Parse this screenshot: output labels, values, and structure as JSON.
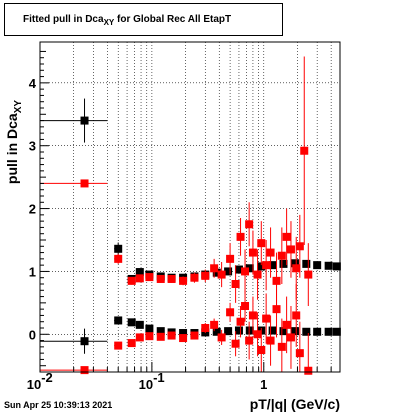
{
  "chart_data": {
    "type": "scatter",
    "title": "Fitted pull in Dca",
    "title_subscript": "XY",
    "title_suffix": " for Global Rec All EtapT",
    "xlabel": "pT/|q| (GeV/c)",
    "ylabel": "pull in Dca",
    "ylabel_subscript": "XY",
    "x_scale": "log",
    "xlim": [
      0.01,
      4.8
    ],
    "ylim": [
      -0.6,
      4.65
    ],
    "x_tick_labels": [
      "10",
      "-2",
      "10",
      "-1",
      "1"
    ],
    "x_major_ticks": [
      0.01,
      0.1,
      1
    ],
    "y_ticks": [
      0,
      1,
      2,
      3,
      4
    ],
    "y_tick_labels": [
      "0",
      "1",
      "2",
      "3",
      "4"
    ],
    "grid": true,
    "series": [
      {
        "marker": "square",
        "color": "#000000",
        "points": [
          {
            "x": 0.025,
            "y": 3.4,
            "xerr": 0.015,
            "yerr": 0.35
          },
          {
            "x": 0.05,
            "y": 1.36,
            "xerr": 0.004,
            "yerr": 0.1
          },
          {
            "x": 0.066,
            "y": 0.88,
            "xerr": 0.004,
            "yerr": 0.06
          },
          {
            "x": 0.078,
            "y": 0.99,
            "xerr": 0.004,
            "yerr": 0.05
          },
          {
            "x": 0.095,
            "y": 0.95,
            "xerr": 0.004,
            "yerr": 0.04
          },
          {
            "x": 0.12,
            "y": 0.92,
            "xerr": 0.005,
            "yerr": 0.04
          },
          {
            "x": 0.15,
            "y": 0.9,
            "xerr": 0.005,
            "yerr": 0.04
          },
          {
            "x": 0.19,
            "y": 0.9,
            "xerr": 0.005,
            "yerr": 0.04
          },
          {
            "x": 0.24,
            "y": 0.92,
            "xerr": 0.006,
            "yerr": 0.04
          },
          {
            "x": 0.3,
            "y": 0.95,
            "xerr": 0.007,
            "yerr": 0.04
          },
          {
            "x": 0.38,
            "y": 0.98,
            "xerr": 0.008,
            "yerr": 0.04
          },
          {
            "x": 0.48,
            "y": 1.0,
            "xerr": 0.01,
            "yerr": 0.04
          },
          {
            "x": 0.6,
            "y": 1.03,
            "xerr": 0.012,
            "yerr": 0.05
          },
          {
            "x": 0.75,
            "y": 1.05,
            "xerr": 0.015,
            "yerr": 0.05
          },
          {
            "x": 0.95,
            "y": 1.08,
            "xerr": 0.02,
            "yerr": 0.05
          },
          {
            "x": 1.2,
            "y": 1.1,
            "xerr": 0.025,
            "yerr": 0.05
          },
          {
            "x": 1.5,
            "y": 1.12,
            "xerr": 0.03,
            "yerr": 0.05
          },
          {
            "x": 1.9,
            "y": 1.13,
            "xerr": 0.04,
            "yerr": 0.05
          },
          {
            "x": 2.4,
            "y": 1.12,
            "xerr": 0.05,
            "yerr": 0.05
          },
          {
            "x": 3.0,
            "y": 1.1,
            "xerr": 0.06,
            "yerr": 0.05
          },
          {
            "x": 3.8,
            "y": 1.09,
            "xerr": 0.08,
            "yerr": 0.05
          },
          {
            "x": 4.5,
            "y": 1.08,
            "xerr": 0.09,
            "yerr": 0.05
          },
          {
            "x": 0.025,
            "y": -0.11,
            "xerr": 0.015,
            "yerr": 0.2
          },
          {
            "x": 0.05,
            "y": 0.22,
            "xerr": 0.004,
            "yerr": 0.04
          },
          {
            "x": 0.066,
            "y": 0.19,
            "xerr": 0.004,
            "yerr": 0.03
          },
          {
            "x": 0.078,
            "y": 0.15,
            "xerr": 0.004,
            "yerr": 0.03
          },
          {
            "x": 0.095,
            "y": 0.09,
            "xerr": 0.004,
            "yerr": 0.03
          },
          {
            "x": 0.12,
            "y": 0.05,
            "xerr": 0.005,
            "yerr": 0.03
          },
          {
            "x": 0.15,
            "y": 0.03,
            "xerr": 0.005,
            "yerr": 0.03
          },
          {
            "x": 0.19,
            "y": 0.02,
            "xerr": 0.005,
            "yerr": 0.03
          },
          {
            "x": 0.24,
            "y": 0.02,
            "xerr": 0.006,
            "yerr": 0.03
          },
          {
            "x": 0.3,
            "y": 0.03,
            "xerr": 0.007,
            "yerr": 0.03
          },
          {
            "x": 0.38,
            "y": 0.04,
            "xerr": 0.008,
            "yerr": 0.03
          },
          {
            "x": 0.48,
            "y": 0.05,
            "xerr": 0.01,
            "yerr": 0.03
          },
          {
            "x": 0.6,
            "y": 0.06,
            "xerr": 0.012,
            "yerr": 0.03
          },
          {
            "x": 0.75,
            "y": 0.06,
            "xerr": 0.015,
            "yerr": 0.03
          },
          {
            "x": 0.95,
            "y": 0.06,
            "xerr": 0.02,
            "yerr": 0.03
          },
          {
            "x": 1.2,
            "y": 0.06,
            "xerr": 0.025,
            "yerr": 0.03
          },
          {
            "x": 1.5,
            "y": 0.05,
            "xerr": 0.03,
            "yerr": 0.03
          },
          {
            "x": 1.9,
            "y": 0.05,
            "xerr": 0.04,
            "yerr": 0.03
          },
          {
            "x": 2.4,
            "y": 0.04,
            "xerr": 0.05,
            "yerr": 0.03
          },
          {
            "x": 3.0,
            "y": 0.04,
            "xerr": 0.06,
            "yerr": 0.03
          },
          {
            "x": 3.8,
            "y": 0.04,
            "xerr": 0.08,
            "yerr": 0.03
          },
          {
            "x": 4.5,
            "y": 0.04,
            "xerr": 0.09,
            "yerr": 0.03
          }
        ]
      },
      {
        "marker": "square",
        "color": "#ff0000",
        "points": [
          {
            "x": 0.025,
            "y": 2.4,
            "xerr": 0.015,
            "yerr": 0.0
          },
          {
            "x": 0.05,
            "y": 1.2,
            "xerr": 0.004,
            "yerr": 0.08
          },
          {
            "x": 0.066,
            "y": 0.85,
            "xerr": 0.004,
            "yerr": 0.06
          },
          {
            "x": 0.078,
            "y": 0.89,
            "xerr": 0.004,
            "yerr": 0.06
          },
          {
            "x": 0.095,
            "y": 0.91,
            "xerr": 0.004,
            "yerr": 0.06
          },
          {
            "x": 0.12,
            "y": 0.88,
            "xerr": 0.005,
            "yerr": 0.06
          },
          {
            "x": 0.15,
            "y": 0.88,
            "xerr": 0.005,
            "yerr": 0.06
          },
          {
            "x": 0.19,
            "y": 0.85,
            "xerr": 0.005,
            "yerr": 0.07
          },
          {
            "x": 0.24,
            "y": 0.9,
            "xerr": 0.006,
            "yerr": 0.08
          },
          {
            "x": 0.3,
            "y": 0.93,
            "xerr": 0.007,
            "yerr": 0.1
          },
          {
            "x": 0.36,
            "y": 1.05,
            "xerr": 0.008,
            "yerr": 0.15
          },
          {
            "x": 0.42,
            "y": 0.95,
            "xerr": 0.008,
            "yerr": 0.2
          },
          {
            "x": 0.5,
            "y": 1.2,
            "xerr": 0.01,
            "yerr": 0.25
          },
          {
            "x": 0.56,
            "y": 0.8,
            "xerr": 0.01,
            "yerr": 0.3
          },
          {
            "x": 0.62,
            "y": 1.55,
            "xerr": 0.01,
            "yerr": 0.3
          },
          {
            "x": 0.68,
            "y": 1.0,
            "xerr": 0.012,
            "yerr": 0.35
          },
          {
            "x": 0.74,
            "y": 1.75,
            "xerr": 0.012,
            "yerr": 0.35
          },
          {
            "x": 0.8,
            "y": 1.3,
            "xerr": 0.015,
            "yerr": 0.35
          },
          {
            "x": 0.88,
            "y": 0.95,
            "xerr": 0.015,
            "yerr": 0.4
          },
          {
            "x": 0.95,
            "y": 1.45,
            "xerr": 0.02,
            "yerr": 0.35
          },
          {
            "x": 1.05,
            "y": 1.1,
            "xerr": 0.02,
            "yerr": 0.4
          },
          {
            "x": 1.15,
            "y": 1.3,
            "xerr": 0.02,
            "yerr": 0.4
          },
          {
            "x": 1.3,
            "y": 0.85,
            "xerr": 0.025,
            "yerr": 0.45
          },
          {
            "x": 1.45,
            "y": 1.25,
            "xerr": 0.025,
            "yerr": 0.45
          },
          {
            "x": 1.6,
            "y": 1.55,
            "xerr": 0.03,
            "yerr": 0.45
          },
          {
            "x": 1.75,
            "y": 1.35,
            "xerr": 0.03,
            "yerr": 0.45
          },
          {
            "x": 1.95,
            "y": 1.05,
            "xerr": 0.04,
            "yerr": 0.5
          },
          {
            "x": 2.1,
            "y": 1.4,
            "xerr": 0.04,
            "yerr": 0.5
          },
          {
            "x": 2.3,
            "y": 2.92,
            "xerr": 0.05,
            "yerr": 1.5
          },
          {
            "x": 2.5,
            "y": 0.95,
            "xerr": 0.05,
            "yerr": 0.5
          },
          {
            "x": 0.025,
            "y": -0.57,
            "xerr": 0.015,
            "yerr": 0.0
          },
          {
            "x": 0.05,
            "y": -0.18,
            "xerr": 0.004,
            "yerr": 0.04
          },
          {
            "x": 0.066,
            "y": -0.14,
            "xerr": 0.004,
            "yerr": 0.03
          },
          {
            "x": 0.078,
            "y": -0.05,
            "xerr": 0.004,
            "yerr": 0.03
          },
          {
            "x": 0.095,
            "y": -0.03,
            "xerr": 0.004,
            "yerr": 0.03
          },
          {
            "x": 0.12,
            "y": -0.04,
            "xerr": 0.005,
            "yerr": 0.03
          },
          {
            "x": 0.15,
            "y": -0.02,
            "xerr": 0.005,
            "yerr": 0.04
          },
          {
            "x": 0.19,
            "y": -0.06,
            "xerr": 0.005,
            "yerr": 0.05
          },
          {
            "x": 0.24,
            "y": -0.02,
            "xerr": 0.006,
            "yerr": 0.06
          },
          {
            "x": 0.3,
            "y": 0.1,
            "xerr": 0.007,
            "yerr": 0.08
          },
          {
            "x": 0.36,
            "y": 0.15,
            "xerr": 0.008,
            "yerr": 0.1
          },
          {
            "x": 0.42,
            "y": -0.05,
            "xerr": 0.008,
            "yerr": 0.12
          },
          {
            "x": 0.5,
            "y": 0.35,
            "xerr": 0.01,
            "yerr": 0.15
          },
          {
            "x": 0.56,
            "y": -0.15,
            "xerr": 0.01,
            "yerr": 0.2
          },
          {
            "x": 0.62,
            "y": 0.2,
            "xerr": 0.01,
            "yerr": 0.25
          },
          {
            "x": 0.68,
            "y": 0.45,
            "xerr": 0.012,
            "yerr": 0.25
          },
          {
            "x": 0.74,
            "y": -0.1,
            "xerr": 0.012,
            "yerr": 0.3
          },
          {
            "x": 0.8,
            "y": 0.3,
            "xerr": 0.015,
            "yerr": 0.3
          },
          {
            "x": 0.88,
            "y": 0.0,
            "xerr": 0.015,
            "yerr": 0.35
          },
          {
            "x": 0.95,
            "y": -0.25,
            "xerr": 0.02,
            "yerr": 0.35
          },
          {
            "x": 1.05,
            "y": 0.25,
            "xerr": 0.02,
            "yerr": 0.4
          },
          {
            "x": 1.15,
            "y": -0.1,
            "xerr": 0.02,
            "yerr": 0.4
          },
          {
            "x": 1.3,
            "y": 0.4,
            "xerr": 0.025,
            "yerr": 0.45
          },
          {
            "x": 1.45,
            "y": -0.2,
            "xerr": 0.025,
            "yerr": 0.45
          },
          {
            "x": 1.6,
            "y": 0.15,
            "xerr": 0.03,
            "yerr": 0.45
          },
          {
            "x": 1.75,
            "y": -0.05,
            "xerr": 0.03,
            "yerr": 0.5
          },
          {
            "x": 1.95,
            "y": 0.3,
            "xerr": 0.04,
            "yerr": 0.5
          },
          {
            "x": 2.1,
            "y": -0.3,
            "xerr": 0.04,
            "yerr": 0.5
          },
          {
            "x": 2.5,
            "y": -0.58,
            "xerr": 0.05,
            "yerr": 0.6
          }
        ]
      }
    ]
  },
  "footer": {
    "date": "Sun Apr 25 10:39:13 2021"
  }
}
